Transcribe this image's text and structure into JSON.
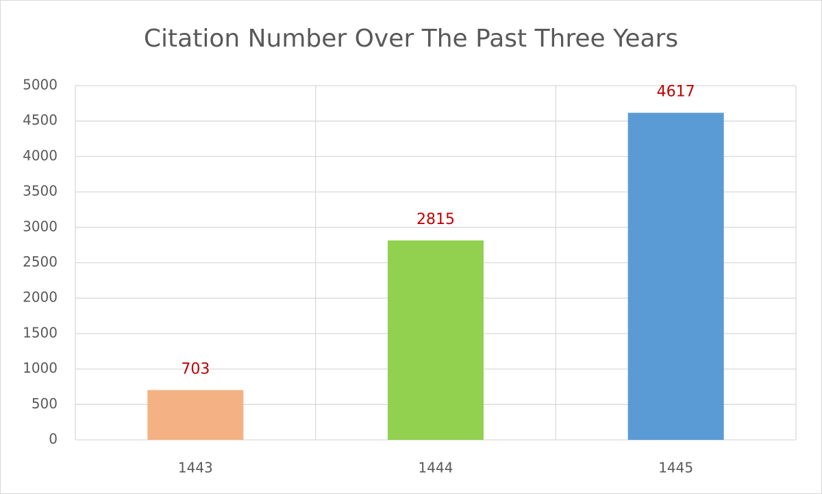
{
  "chart_data": {
    "type": "bar",
    "title": "Citation Number Over The Past Three Years",
    "categories": [
      "1443",
      "1444",
      "1445"
    ],
    "values": [
      703,
      2815,
      4617
    ],
    "colors": [
      "#f4b183",
      "#92d050",
      "#5b9bd5"
    ],
    "value_label_color": "#c00000",
    "ylim": [
      0,
      5000
    ],
    "yticks": [
      0,
      500,
      1000,
      1500,
      2000,
      2500,
      3000,
      3500,
      4000,
      4500,
      5000
    ],
    "grid": true
  }
}
